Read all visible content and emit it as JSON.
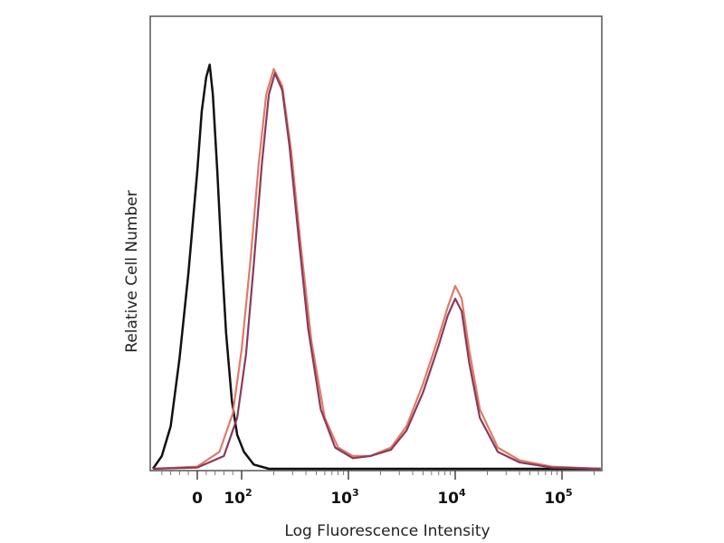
{
  "chart_data": {
    "type": "line",
    "title": "",
    "xlabel": "Log Fluorescence Intensity",
    "ylabel": "Relative Cell Number",
    "x_scale": "biexponential (linear near 0, log above 10^2)",
    "xlim": [
      -100,
      230000
    ],
    "ylim": [
      0,
      100
    ],
    "grid": false,
    "legend": "none",
    "x_ticks": [
      {
        "value": 0,
        "label": "0"
      },
      {
        "value": 100,
        "label": "10",
        "exp": "2"
      },
      {
        "value": 1000,
        "label": "10",
        "exp": "3"
      },
      {
        "value": 10000,
        "label": "10",
        "exp": "4"
      },
      {
        "value": 100000,
        "label": "10",
        "exp": "5"
      }
    ],
    "series": [
      {
        "color": "#111111",
        "points": [
          [
            -100,
            0
          ],
          [
            -80,
            3
          ],
          [
            -60,
            10
          ],
          [
            -40,
            26
          ],
          [
            -20,
            46
          ],
          [
            0,
            70
          ],
          [
            10,
            84
          ],
          [
            20,
            92
          ],
          [
            28,
            95
          ],
          [
            35,
            88
          ],
          [
            45,
            70
          ],
          [
            55,
            50
          ],
          [
            65,
            32
          ],
          [
            78,
            16
          ],
          [
            90,
            8
          ],
          [
            105,
            4
          ],
          [
            130,
            1
          ],
          [
            180,
            0
          ],
          [
            230000,
            0
          ]
        ]
      },
      {
        "color": "#e07a68",
        "points": [
          [
            -100,
            0
          ],
          [
            0,
            0.5
          ],
          [
            50,
            4
          ],
          [
            80,
            13
          ],
          [
            100,
            28
          ],
          [
            120,
            48
          ],
          [
            145,
            72
          ],
          [
            170,
            88
          ],
          [
            200,
            94
          ],
          [
            240,
            90
          ],
          [
            290,
            75
          ],
          [
            360,
            52
          ],
          [
            450,
            30
          ],
          [
            600,
            12
          ],
          [
            800,
            5
          ],
          [
            1100,
            3
          ],
          [
            1600,
            3
          ],
          [
            2500,
            5
          ],
          [
            3500,
            10
          ],
          [
            5000,
            20
          ],
          [
            7000,
            31
          ],
          [
            8500,
            38
          ],
          [
            10000,
            43
          ],
          [
            11500,
            40
          ],
          [
            13500,
            28
          ],
          [
            17000,
            14
          ],
          [
            25000,
            5
          ],
          [
            40000,
            2
          ],
          [
            80000,
            0.5
          ],
          [
            230000,
            0
          ]
        ]
      },
      {
        "color": "#8a3a5c",
        "points": [
          [
            -100,
            0
          ],
          [
            0,
            0.3
          ],
          [
            60,
            3
          ],
          [
            90,
            12
          ],
          [
            110,
            27
          ],
          [
            130,
            48
          ],
          [
            155,
            72
          ],
          [
            180,
            88
          ],
          [
            205,
            93
          ],
          [
            240,
            89
          ],
          [
            280,
            76
          ],
          [
            340,
            55
          ],
          [
            420,
            33
          ],
          [
            550,
            14
          ],
          [
            750,
            5
          ],
          [
            1100,
            2.5
          ],
          [
            1600,
            3
          ],
          [
            2500,
            4.5
          ],
          [
            3500,
            9
          ],
          [
            5000,
            18
          ],
          [
            7000,
            29
          ],
          [
            8500,
            36
          ],
          [
            10000,
            40
          ],
          [
            11500,
            37
          ],
          [
            13500,
            25
          ],
          [
            17000,
            12
          ],
          [
            25000,
            4
          ],
          [
            40000,
            1.5
          ],
          [
            80000,
            0.3
          ],
          [
            230000,
            0
          ]
        ]
      }
    ]
  }
}
